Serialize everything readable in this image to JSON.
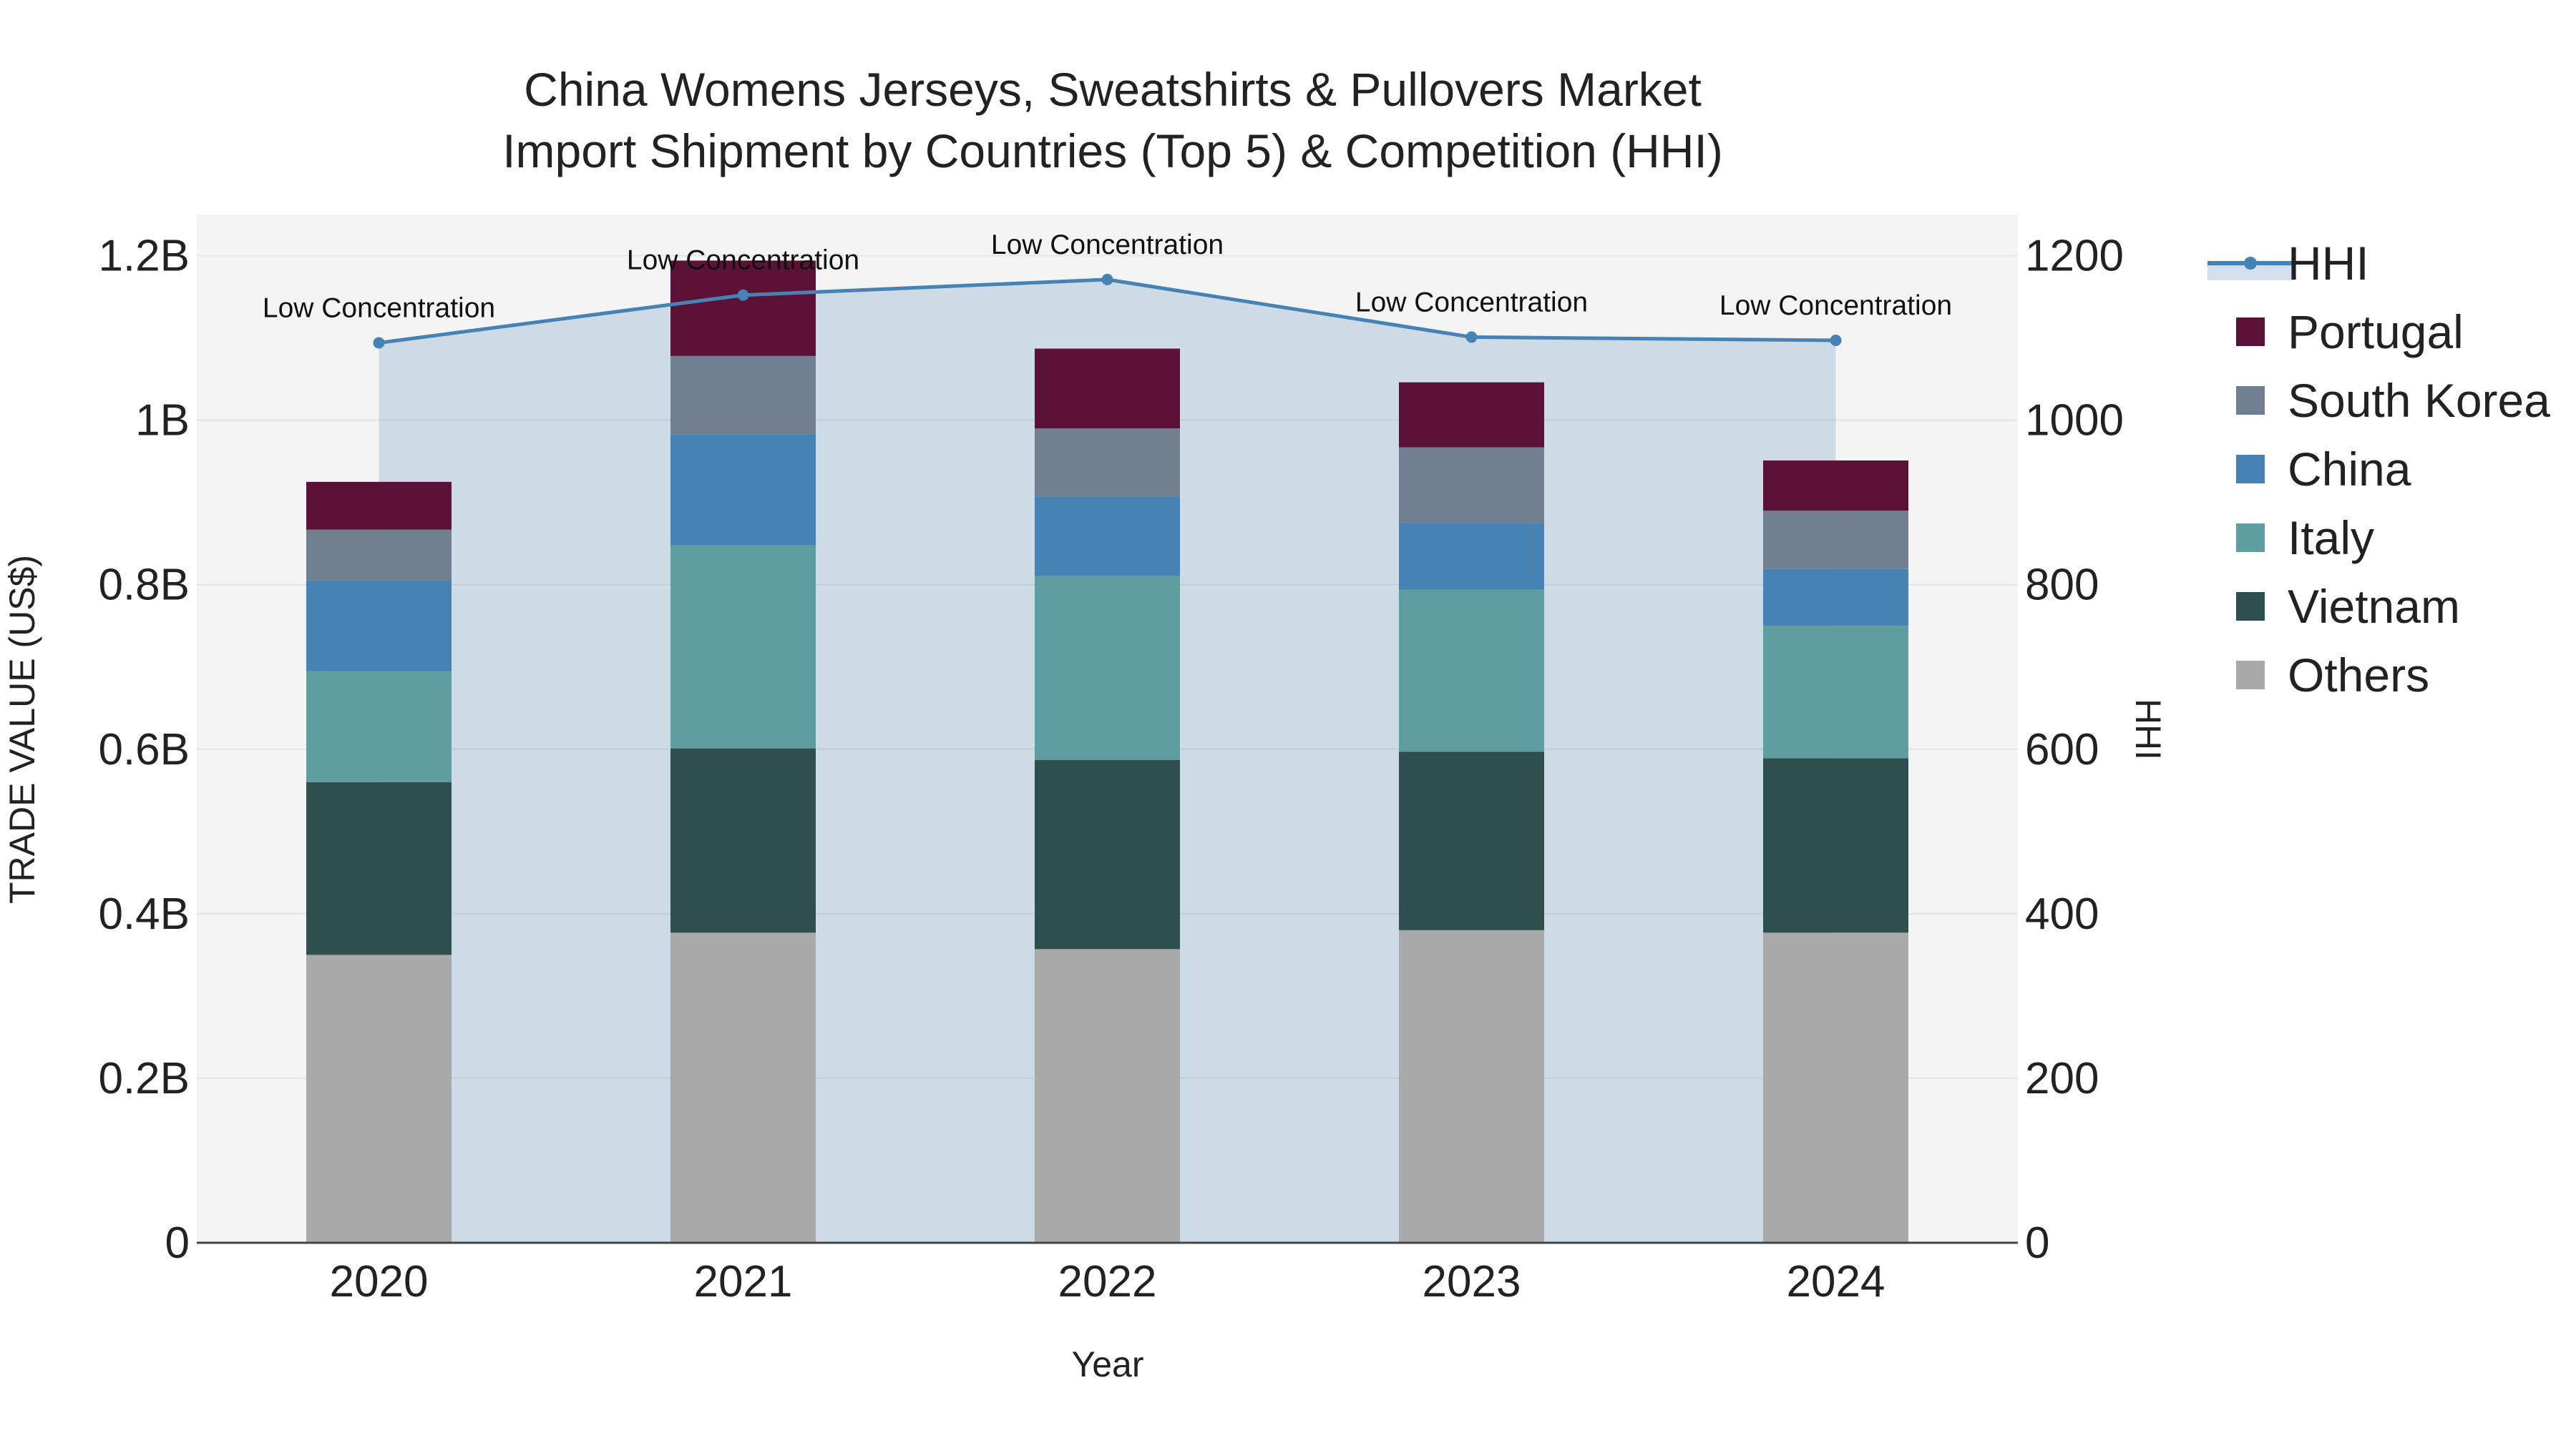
{
  "chart_data": {
    "type": "bar",
    "title_line1": "China Womens Jerseys, Sweatshirts & Pullovers Market",
    "title_line2": "Import Shipment by Countries (Top 5) & Competition (HHI)",
    "xlabel": "Year",
    "ylabel": "TRADE VALUE (US$)",
    "y2label": "HHI",
    "categories": [
      "2020",
      "2021",
      "2022",
      "2023",
      "2024"
    ],
    "ylim": [
      0,
      1.25
    ],
    "y_ticks": [
      0,
      0.2,
      0.4,
      0.6,
      0.8,
      1.0,
      1.2
    ],
    "y_tick_labels": [
      "0",
      "0.2B",
      "0.4B",
      "0.6B",
      "0.8B",
      "1B",
      "1.2B"
    ],
    "y2lim": [
      0,
      1250
    ],
    "y2_ticks": [
      0,
      200,
      400,
      600,
      800,
      1000,
      1200
    ],
    "y2_tick_labels": [
      "0",
      "200",
      "400",
      "600",
      "800",
      "1000",
      "1200"
    ],
    "value_unit": "billion US$",
    "series": [
      {
        "name": "Others",
        "color": "#a9a9a9",
        "values": [
          0.35,
          0.377,
          0.357,
          0.38,
          0.377
        ]
      },
      {
        "name": "Vietnam",
        "color": "#2f4f4f",
        "values": [
          0.21,
          0.224,
          0.23,
          0.217,
          0.212
        ]
      },
      {
        "name": "Italy",
        "color": "#5f9ea0",
        "values": [
          0.135,
          0.247,
          0.224,
          0.197,
          0.161
        ]
      },
      {
        "name": "China",
        "color": "#4682b4",
        "values": [
          0.11,
          0.135,
          0.096,
          0.081,
          0.069
        ]
      },
      {
        "name": "South Korea",
        "color": "#708090",
        "values": [
          0.062,
          0.095,
          0.083,
          0.092,
          0.071
        ]
      },
      {
        "name": "Portugal",
        "color": "#5c1236",
        "values": [
          0.058,
          0.116,
          0.097,
          0.079,
          0.061
        ]
      }
    ],
    "hhi": {
      "name": "HHI",
      "color": "#4682b4",
      "values": [
        1094,
        1152,
        1171,
        1101,
        1097
      ],
      "annotations": [
        "Low Concentration",
        "Low Concentration",
        "Low Concentration",
        "Low Concentration",
        "Low Concentration"
      ]
    },
    "legend_order": [
      "HHI",
      "Portugal",
      "South Korea",
      "China",
      "Italy",
      "Vietnam",
      "Others"
    ],
    "legend_position": "right",
    "background_color": "#f4f4f4",
    "grid": true
  }
}
